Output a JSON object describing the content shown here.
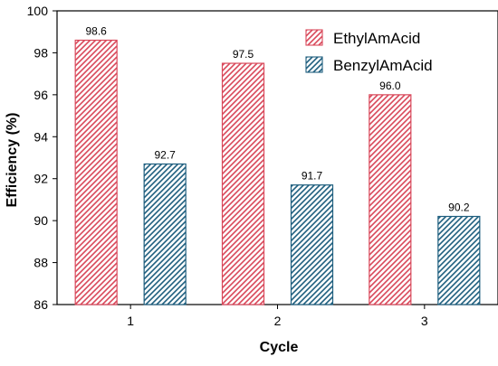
{
  "chart_data": {
    "type": "bar",
    "title": "",
    "xlabel": "Cycle",
    "ylabel": "Efficiency (%)",
    "categories": [
      "1",
      "2",
      "3"
    ],
    "ylim": [
      86,
      100
    ],
    "yticks": [
      86,
      88,
      90,
      92,
      94,
      96,
      98,
      100
    ],
    "legend_position": "top-right",
    "grid": false,
    "series": [
      {
        "name": "EthylAmAcid",
        "values": [
          98.6,
          97.5,
          96.0
        ],
        "labels": [
          "98.6",
          "97.5",
          "96.0"
        ],
        "color": "#d9485a",
        "pattern": "diagonal-hatch"
      },
      {
        "name": "BenzylAmAcid",
        "values": [
          92.7,
          91.7,
          90.2
        ],
        "labels": [
          "92.7",
          "91.7",
          "90.2"
        ],
        "color": "#1f5f7f",
        "pattern": "diagonal-hatch"
      }
    ]
  }
}
